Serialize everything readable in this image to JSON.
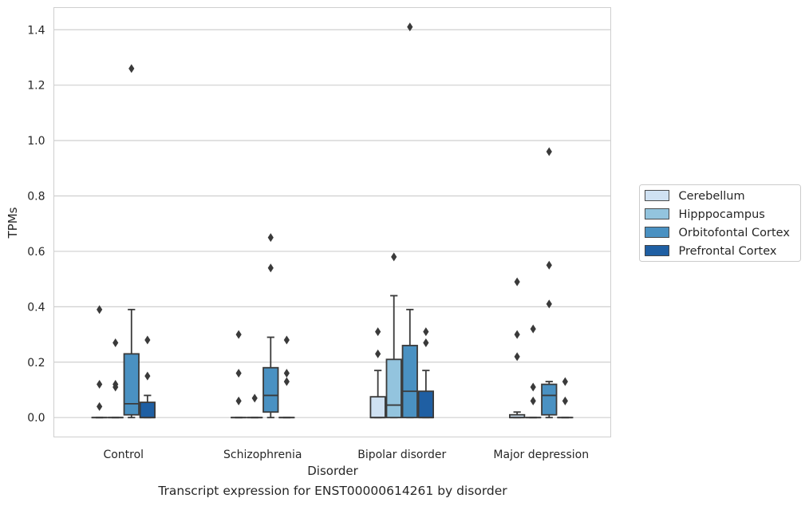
{
  "chart_data": {
    "type": "box",
    "xlabel": "Disorder",
    "ylabel": "TPMs",
    "ylim": [
      -0.07,
      1.48
    ],
    "yticks": [
      0.0,
      0.2,
      0.4,
      0.6,
      0.8,
      1.0,
      1.2,
      1.4
    ],
    "ytick_labels": [
      "0.0",
      "0.2",
      "0.4",
      "0.6",
      "0.8",
      "1.0",
      "1.2",
      "1.4"
    ],
    "grid": "horizontal",
    "legend_position": "right",
    "categories": [
      "Control",
      "Schizophrenia",
      "Bipolar disorder",
      "Major depression"
    ],
    "series": [
      {
        "name": "Cerebellum",
        "color": "#cfe1f2",
        "boxes": [
          {
            "q1": 0,
            "median": 0,
            "q3": 0,
            "whisker_low": 0,
            "whisker_high": 0,
            "outliers": [
              0.04,
              0.12,
              0.39
            ]
          },
          {
            "q1": 0,
            "median": 0,
            "q3": 0,
            "whisker_low": 0,
            "whisker_high": 0,
            "outliers": [
              0.06,
              0.16,
              0.3
            ]
          },
          {
            "q1": 0,
            "median": 0,
            "q3": 0.075,
            "whisker_low": 0,
            "whisker_high": 0.17,
            "outliers": [
              0.23,
              0.31
            ]
          },
          {
            "q1": 0,
            "median": 0,
            "q3": 0.01,
            "whisker_low": 0,
            "whisker_high": 0.02,
            "outliers": [
              0.22,
              0.3,
              0.49
            ]
          }
        ]
      },
      {
        "name": "Hipppocampus",
        "color": "#93c4de",
        "boxes": [
          {
            "q1": 0,
            "median": 0,
            "q3": 0,
            "whisker_low": 0,
            "whisker_high": 0,
            "outliers": [
              0.11,
              0.12,
              0.27
            ]
          },
          {
            "q1": 0,
            "median": 0,
            "q3": 0,
            "whisker_low": 0,
            "whisker_high": 0,
            "outliers": [
              0.07
            ]
          },
          {
            "q1": 0,
            "median": 0.045,
            "q3": 0.21,
            "whisker_low": 0,
            "whisker_high": 0.44,
            "outliers": [
              0.58
            ]
          },
          {
            "q1": 0,
            "median": 0,
            "q3": 0,
            "whisker_low": 0,
            "whisker_high": 0,
            "outliers": [
              0.06,
              0.11,
              0.32
            ]
          }
        ]
      },
      {
        "name": "Orbitofontal Cortex",
        "color": "#4a91c2",
        "boxes": [
          {
            "q1": 0.01,
            "median": 0.05,
            "q3": 0.23,
            "whisker_low": 0,
            "whisker_high": 0.39,
            "outliers": [
              1.26
            ]
          },
          {
            "q1": 0.02,
            "median": 0.08,
            "q3": 0.18,
            "whisker_low": 0,
            "whisker_high": 0.29,
            "outliers": [
              0.54,
              0.65
            ]
          },
          {
            "q1": 0,
            "median": 0.095,
            "q3": 0.26,
            "whisker_low": 0,
            "whisker_high": 0.39,
            "outliers": [
              1.41
            ]
          },
          {
            "q1": 0.01,
            "median": 0.08,
            "q3": 0.12,
            "whisker_low": 0,
            "whisker_high": 0.13,
            "outliers": [
              0.41,
              0.55,
              0.96
            ]
          }
        ]
      },
      {
        "name": "Prefrontal Cortex",
        "color": "#1f5fa3",
        "boxes": [
          {
            "q1": 0,
            "median": 0,
            "q3": 0.055,
            "whisker_low": 0,
            "whisker_high": 0.08,
            "outliers": [
              0.15,
              0.28
            ]
          },
          {
            "q1": 0,
            "median": 0,
            "q3": 0,
            "whisker_low": 0,
            "whisker_high": 0,
            "outliers": [
              0.13,
              0.16,
              0.28
            ]
          },
          {
            "q1": 0,
            "median": 0,
            "q3": 0.095,
            "whisker_low": 0,
            "whisker_high": 0.17,
            "outliers": [
              0.27,
              0.31
            ]
          },
          {
            "q1": 0,
            "median": 0,
            "q3": 0,
            "whisker_low": 0,
            "whisker_high": 0,
            "outliers": [
              0.06,
              0.13
            ]
          }
        ]
      }
    ]
  },
  "caption": "Transcript expression for ENST00000614261 by disorder",
  "colors": {
    "grid": "#cfcfcf",
    "frame": "#cfcfcf",
    "line": "#3a3a3a",
    "outlier": "#3a3a3a"
  }
}
